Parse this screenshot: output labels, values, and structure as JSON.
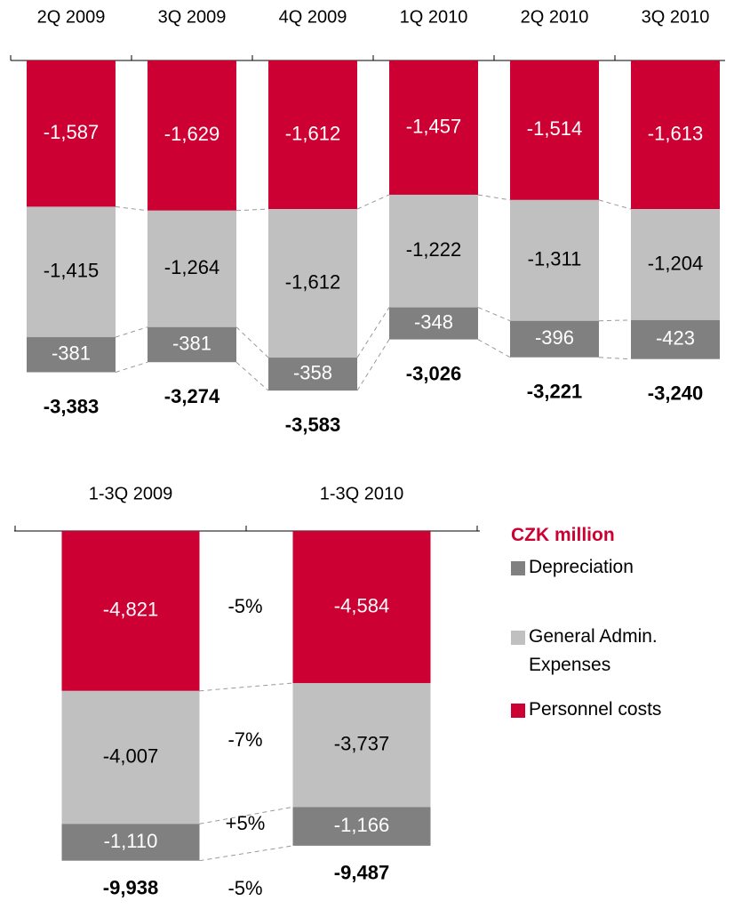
{
  "chart_data": [
    {
      "type": "stacked_bar",
      "categories": [
        "2Q 2009",
        "3Q 2009",
        "4Q 2009",
        "1Q 2010",
        "2Q 2010",
        "3Q 2010"
      ],
      "ylim": [
        -3600,
        0
      ],
      "series": [
        {
          "color": "#cc0033",
          "values": [
            -1587,
            -1629,
            -1612,
            -1457,
            -1514,
            -1613
          ],
          "value_labels": [
            "-1,587",
            "-1,629",
            "-1,612",
            "-1,457",
            "-1,514",
            "-1,613"
          ]
        },
        {
          "color": "#c0c0c0",
          "values": [
            -1415,
            -1264,
            -1612,
            -1222,
            -1311,
            -1204
          ],
          "value_labels": [
            "-1,415",
            "-1,264",
            "-1,612",
            "-1,222",
            "-1,311",
            "-1,204"
          ]
        },
        {
          "color": "#808080",
          "values": [
            -381,
            -381,
            -358,
            -348,
            -396,
            -423
          ],
          "value_labels": [
            "-381",
            "-381",
            "-358",
            "-348",
            "-396",
            "-423"
          ]
        }
      ],
      "totals": {
        "values": [
          -3383,
          -3274,
          -3583,
          -3026,
          -3221,
          -3240
        ],
        "value_labels": [
          "-3,383",
          "-3,274",
          "-3,583",
          "-3,026",
          "-3,221",
          "-3,240"
        ]
      }
    },
    {
      "type": "stacked_bar",
      "categories": [
        "1-3Q 2009",
        "1-3Q 2010"
      ],
      "ylim": [
        -10000,
        0
      ],
      "legend_title": "CZK million",
      "series": [
        {
          "name": "Personnel costs",
          "color": "#cc0033",
          "values": [
            -4821,
            -4584
          ],
          "value_labels": [
            "-4,821",
            "-4,584"
          ]
        },
        {
          "name": "General Admin. Expenses",
          "color": "#c0c0c0",
          "values": [
            -4007,
            -3737
          ],
          "value_labels": [
            "-4,007",
            "-3,737"
          ]
        },
        {
          "name": "Depreciation",
          "color": "#808080",
          "values": [
            -1110,
            -1166
          ],
          "value_labels": [
            "-1,110",
            "-1,166"
          ]
        }
      ],
      "totals": {
        "values": [
          -9938,
          -9487
        ],
        "value_labels": [
          "-9,938",
          "-9,487"
        ]
      },
      "annotations": [
        "-5%",
        "-7%",
        "+5%",
        "-5%"
      ]
    }
  ]
}
